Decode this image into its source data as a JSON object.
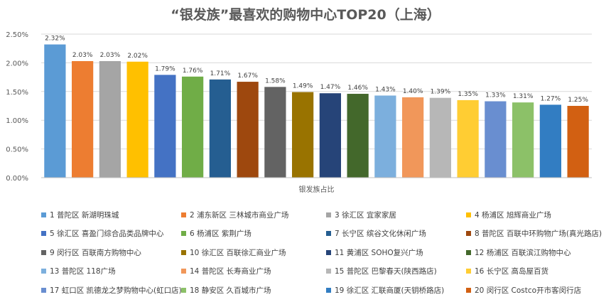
{
  "chart_data": {
    "type": "bar",
    "title": "“银发族”最喜欢的购物中心TOP20（上海）",
    "xlabel": "银发族占比",
    "ylabel": "",
    "ylim": [
      0,
      2.5
    ],
    "yticks": [
      "0.00%",
      "0.50%",
      "1.00%",
      "1.50%",
      "2.00%",
      "2.50%"
    ],
    "grid": true,
    "legend_position": "bottom",
    "series": [
      {
        "name": "1 普陀区 新湖明珠城",
        "value": 2.32,
        "label": "2.32%",
        "color": "#5B9BD5"
      },
      {
        "name": "2 浦东新区 三林城市商业广场",
        "value": 2.03,
        "label": "2.03%",
        "color": "#ED7D31"
      },
      {
        "name": "3 徐汇区 宜家家居",
        "value": 2.03,
        "label": "2.03%",
        "color": "#A5A5A5"
      },
      {
        "name": "4 杨浦区 旭辉商业广场",
        "value": 2.02,
        "label": "2.02%",
        "color": "#FFC000"
      },
      {
        "name": "5 徐汇区 喜盈门综合品类品牌中心",
        "value": 1.79,
        "label": "1.79%",
        "color": "#4472C4"
      },
      {
        "name": "6 杨浦区 紫荆广场",
        "value": 1.76,
        "label": "1.76%",
        "color": "#70AD47"
      },
      {
        "name": "7 长宁区 缤谷文化休闲广场",
        "value": 1.71,
        "label": "1.71%",
        "color": "#255E91"
      },
      {
        "name": "8 普陀区 百联中环购物广场(真光路店)",
        "value": 1.67,
        "label": "1.67%",
        "color": "#9E480E"
      },
      {
        "name": "9 闵行区 百联南方购物中心",
        "value": 1.58,
        "label": "1.58%",
        "color": "#636363"
      },
      {
        "name": "10 徐汇区 百联徐汇商业广场",
        "value": 1.49,
        "label": "1.49%",
        "color": "#997300"
      },
      {
        "name": "11 黄浦区 SOHO复兴广场",
        "value": 1.47,
        "label": "1.47%",
        "color": "#264478"
      },
      {
        "name": "12 杨浦区 百联滨江购物中心",
        "value": 1.46,
        "label": "1.46%",
        "color": "#43682B"
      },
      {
        "name": "13 普陀区 118广场",
        "value": 1.43,
        "label": "1.43%",
        "color": "#7CAFDD"
      },
      {
        "name": "14 普陀区 长寿商业广场",
        "value": 1.4,
        "label": "1.40%",
        "color": "#F1975A"
      },
      {
        "name": "15 普陀区 巴黎春天(陕西路店)",
        "value": 1.39,
        "label": "1.39%",
        "color": "#B7B7B7"
      },
      {
        "name": "16 长宁区 高岛屋百货",
        "value": 1.35,
        "label": "1.35%",
        "color": "#FFCD33"
      },
      {
        "name": "17 虹口区 凯德龙之梦购物中心(虹口店)",
        "value": 1.33,
        "label": "1.33%",
        "color": "#698ED0"
      },
      {
        "name": "18 静安区 久百城市广场",
        "value": 1.31,
        "label": "1.31%",
        "color": "#8CC168"
      },
      {
        "name": "19 徐汇区 汇联商厦(天钥桥路店)",
        "value": 1.27,
        "label": "1.27%",
        "color": "#327DC2"
      },
      {
        "name": "20 闵行区 Costco开市客闵行店",
        "value": 1.25,
        "label": "1.25%",
        "color": "#D26012"
      }
    ]
  }
}
